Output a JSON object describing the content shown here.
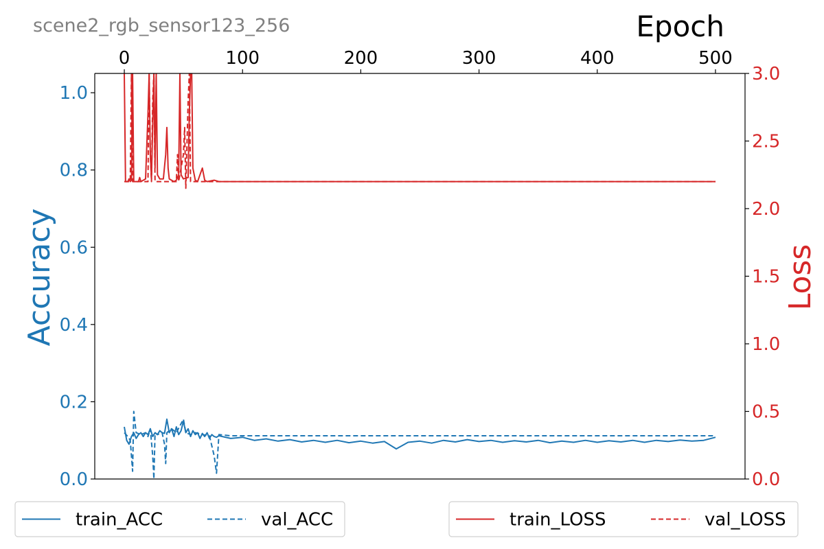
{
  "figure_title": "scene2_rgb_sensor123_256",
  "colors": {
    "acc": "#1f77b4",
    "loss": "#d62728",
    "title_gray": "#808080"
  },
  "chart_data": {
    "type": "line",
    "xlabel": "Epoch",
    "ylabel_left": "Accuracy",
    "ylabel_right": "Loss",
    "xlim": [
      -25,
      525
    ],
    "ylim_left": [
      0,
      1.05
    ],
    "ylim_right": [
      0,
      3.0
    ],
    "xticks": [
      0,
      100,
      200,
      300,
      400,
      500
    ],
    "yticks_left": [
      0.0,
      0.2,
      0.4,
      0.6,
      0.8,
      1.0
    ],
    "yticks_right": [
      0.0,
      0.5,
      1.0,
      1.5,
      2.0,
      2.5,
      3.0
    ],
    "xtick_labels": [
      "0",
      "100",
      "200",
      "300",
      "400",
      "500"
    ],
    "ytick_labels_left": [
      "0.0",
      "0.2",
      "0.4",
      "0.6",
      "0.8",
      "1.0"
    ],
    "ytick_labels_right": [
      "0.0",
      "0.5",
      "1.0",
      "1.5",
      "2.0",
      "2.5",
      "3.0"
    ],
    "grid": false,
    "series": [
      {
        "name": "train_ACC",
        "axis": "left",
        "style": "solid",
        "color": "#1f77b4",
        "points": [
          [
            0,
            0.135
          ],
          [
            2,
            0.1
          ],
          [
            4,
            0.09
          ],
          [
            6,
            0.11
          ],
          [
            8,
            0.12
          ],
          [
            10,
            0.105
          ],
          [
            12,
            0.115
          ],
          [
            14,
            0.12
          ],
          [
            16,
            0.11
          ],
          [
            18,
            0.12
          ],
          [
            20,
            0.115
          ],
          [
            22,
            0.13
          ],
          [
            24,
            0.11
          ],
          [
            26,
            0.12
          ],
          [
            28,
            0.115
          ],
          [
            30,
            0.125
          ],
          [
            32,
            0.12
          ],
          [
            34,
            0.118
          ],
          [
            36,
            0.155
          ],
          [
            38,
            0.12
          ],
          [
            40,
            0.13
          ],
          [
            42,
            0.11
          ],
          [
            44,
            0.135
          ],
          [
            46,
            0.115
          ],
          [
            48,
            0.125
          ],
          [
            50,
            0.15
          ],
          [
            52,
            0.12
          ],
          [
            54,
            0.13
          ],
          [
            56,
            0.11
          ],
          [
            58,
            0.125
          ],
          [
            60,
            0.115
          ],
          [
            62,
            0.12
          ],
          [
            64,
            0.105
          ],
          [
            66,
            0.118
          ],
          [
            68,
            0.11
          ],
          [
            70,
            0.12
          ],
          [
            72,
            0.105
          ],
          [
            74,
            0.115
          ],
          [
            76,
            0.11
          ],
          [
            78,
            0.108
          ],
          [
            80,
            0.112
          ],
          [
            90,
            0.105
          ],
          [
            100,
            0.108
          ],
          [
            110,
            0.1
          ],
          [
            120,
            0.104
          ],
          [
            130,
            0.098
          ],
          [
            140,
            0.102
          ],
          [
            150,
            0.096
          ],
          [
            160,
            0.1
          ],
          [
            170,
            0.095
          ],
          [
            180,
            0.1
          ],
          [
            190,
            0.094
          ],
          [
            200,
            0.098
          ],
          [
            210,
            0.093
          ],
          [
            220,
            0.097
          ],
          [
            230,
            0.078
          ],
          [
            240,
            0.095
          ],
          [
            250,
            0.098
          ],
          [
            260,
            0.093
          ],
          [
            270,
            0.1
          ],
          [
            280,
            0.096
          ],
          [
            290,
            0.102
          ],
          [
            300,
            0.097
          ],
          [
            310,
            0.1
          ],
          [
            320,
            0.095
          ],
          [
            330,
            0.099
          ],
          [
            340,
            0.096
          ],
          [
            350,
            0.1
          ],
          [
            360,
            0.094
          ],
          [
            370,
            0.098
          ],
          [
            380,
            0.095
          ],
          [
            390,
            0.1
          ],
          [
            400,
            0.095
          ],
          [
            410,
            0.099
          ],
          [
            420,
            0.096
          ],
          [
            430,
            0.1
          ],
          [
            440,
            0.095
          ],
          [
            450,
            0.1
          ],
          [
            460,
            0.097
          ],
          [
            470,
            0.101
          ],
          [
            480,
            0.098
          ],
          [
            490,
            0.1
          ],
          [
            500,
            0.108
          ]
        ]
      },
      {
        "name": "val_ACC",
        "axis": "left",
        "style": "dashed",
        "color": "#1f77b4",
        "points": [
          [
            0,
            0.12
          ],
          [
            3,
            0.11
          ],
          [
            5,
            0.1
          ],
          [
            6,
            0.06
          ],
          [
            7,
            0.02
          ],
          [
            8,
            0.175
          ],
          [
            10,
            0.12
          ],
          [
            14,
            0.115
          ],
          [
            18,
            0.12
          ],
          [
            20,
            0.11
          ],
          [
            22,
            0.13
          ],
          [
            24,
            0.06
          ],
          [
            25,
            0.0
          ],
          [
            26,
            0.12
          ],
          [
            28,
            0.115
          ],
          [
            32,
            0.12
          ],
          [
            34,
            0.09
          ],
          [
            35,
            0.04
          ],
          [
            36,
            0.12
          ],
          [
            40,
            0.13
          ],
          [
            44,
            0.12
          ],
          [
            50,
            0.155
          ],
          [
            52,
            0.12
          ],
          [
            56,
            0.115
          ],
          [
            60,
            0.12
          ],
          [
            66,
            0.115
          ],
          [
            72,
            0.112
          ],
          [
            76,
            0.06
          ],
          [
            78,
            0.015
          ],
          [
            80,
            0.115
          ],
          [
            90,
            0.112
          ],
          [
            100,
            0.112
          ],
          [
            200,
            0.112
          ],
          [
            300,
            0.112
          ],
          [
            400,
            0.112
          ],
          [
            500,
            0.112
          ]
        ]
      },
      {
        "name": "train_LOSS",
        "axis": "right",
        "style": "solid",
        "color": "#d62728",
        "points": [
          [
            0,
            3.0
          ],
          [
            1,
            2.2
          ],
          [
            3,
            2.2
          ],
          [
            4,
            2.22
          ],
          [
            5,
            2.2
          ],
          [
            6,
            2.21
          ],
          [
            7,
            3.0
          ],
          [
            8,
            2.2
          ],
          [
            12,
            2.2
          ],
          [
            13,
            2.23
          ],
          [
            14,
            2.2
          ],
          [
            18,
            2.22
          ],
          [
            20,
            2.7
          ],
          [
            21,
            3.0
          ],
          [
            22,
            2.4
          ],
          [
            23,
            2.22
          ],
          [
            25,
            3.0
          ],
          [
            26,
            2.3
          ],
          [
            27,
            3.0
          ],
          [
            28,
            2.25
          ],
          [
            30,
            2.22
          ],
          [
            33,
            2.22
          ],
          [
            35,
            2.4
          ],
          [
            36,
            2.6
          ],
          [
            37,
            2.3
          ],
          [
            38,
            2.22
          ],
          [
            42,
            2.2
          ],
          [
            44,
            2.21
          ],
          [
            46,
            2.25
          ],
          [
            47,
            3.0
          ],
          [
            48,
            2.25
          ],
          [
            50,
            2.22
          ],
          [
            54,
            2.23
          ],
          [
            55,
            2.7
          ],
          [
            56,
            3.0
          ],
          [
            57,
            3.0
          ],
          [
            58,
            2.3
          ],
          [
            60,
            2.21
          ],
          [
            62,
            2.2
          ],
          [
            64,
            2.25
          ],
          [
            66,
            2.3
          ],
          [
            68,
            2.21
          ],
          [
            70,
            2.2
          ],
          [
            76,
            2.21
          ],
          [
            80,
            2.2
          ],
          [
            100,
            2.2
          ],
          [
            200,
            2.2
          ],
          [
            300,
            2.2
          ],
          [
            400,
            2.2
          ],
          [
            500,
            2.2
          ]
        ]
      },
      {
        "name": "val_LOSS",
        "axis": "right",
        "style": "dashed",
        "color": "#d62728",
        "points": [
          [
            0,
            2.2
          ],
          [
            5,
            2.2
          ],
          [
            6,
            3.0
          ],
          [
            7,
            2.2
          ],
          [
            10,
            2.2
          ],
          [
            20,
            2.2
          ],
          [
            21,
            3.0
          ],
          [
            22,
            2.4
          ],
          [
            23,
            2.2
          ],
          [
            24,
            2.8
          ],
          [
            25,
            3.0
          ],
          [
            26,
            2.2
          ],
          [
            30,
            2.2
          ],
          [
            44,
            2.2
          ],
          [
            45,
            2.4
          ],
          [
            46,
            2.2
          ],
          [
            50,
            2.4
          ],
          [
            51,
            2.6
          ],
          [
            52,
            2.15
          ],
          [
            54,
            2.8
          ],
          [
            55,
            3.0
          ],
          [
            56,
            2.2
          ],
          [
            60,
            2.2
          ],
          [
            70,
            2.2
          ],
          [
            80,
            2.2
          ],
          [
            100,
            2.2
          ],
          [
            200,
            2.2
          ],
          [
            300,
            2.2
          ],
          [
            400,
            2.2
          ],
          [
            500,
            2.2
          ]
        ]
      }
    ],
    "legends": [
      {
        "position": "bottom-left",
        "entries": [
          "train_ACC",
          "val_ACC"
        ]
      },
      {
        "position": "bottom-right",
        "entries": [
          "train_LOSS",
          "val_LOSS"
        ]
      }
    ]
  }
}
